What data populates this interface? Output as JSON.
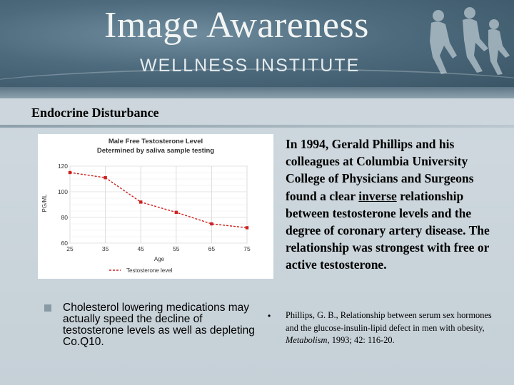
{
  "header": {
    "brand_title": "Image Awareness",
    "brand_subtitle": "WELLNESS INSTITUTE",
    "logo_icon": "people-silhouette-icon"
  },
  "slide": {
    "title": "Endocrine Disturbance"
  },
  "chart_data": {
    "type": "line",
    "title": "Male Free Testosterone Level",
    "subtitle": "Determined by saliva sample testing",
    "xlabel": "Age",
    "ylabel": "PG/ML",
    "x": [
      25,
      35,
      45,
      55,
      65,
      75
    ],
    "xticks": [
      "25",
      "35",
      "45",
      "55",
      "65",
      "75"
    ],
    "yticks": [
      "60",
      "80",
      "100",
      "120"
    ],
    "ylim": [
      60,
      120
    ],
    "xlim": [
      25,
      75
    ],
    "series": [
      {
        "name": "Testosterone level",
        "x": [
          25,
          35,
          45,
          55,
          65,
          75
        ],
        "values": [
          115,
          111,
          92,
          84,
          75,
          72
        ],
        "color": "#cc2222"
      }
    ],
    "grid": true,
    "legend": "bottom"
  },
  "left_bullet": {
    "text": "Cholesterol lowering medications may actually speed the decline of testosterone levels as well as depleting Co.Q10."
  },
  "right_text": {
    "part1": "In 1994, Gerald Phillips and his colleagues at Columbia University College of Physicians and Surgeons found a clear ",
    "underlined": "inverse",
    "part2": " relationship between testosterone levels and the degree of coronary artery disease. The relationship was strongest with free or active testosterone."
  },
  "reference": {
    "bullet": "•",
    "before": "Phillips, G. B., Relationship between serum sex hormones and the glucose-insulin-lipid defect in men with obesity, ",
    "journal": "Metabolism",
    "after": ", 1993; 42: 116-20."
  }
}
